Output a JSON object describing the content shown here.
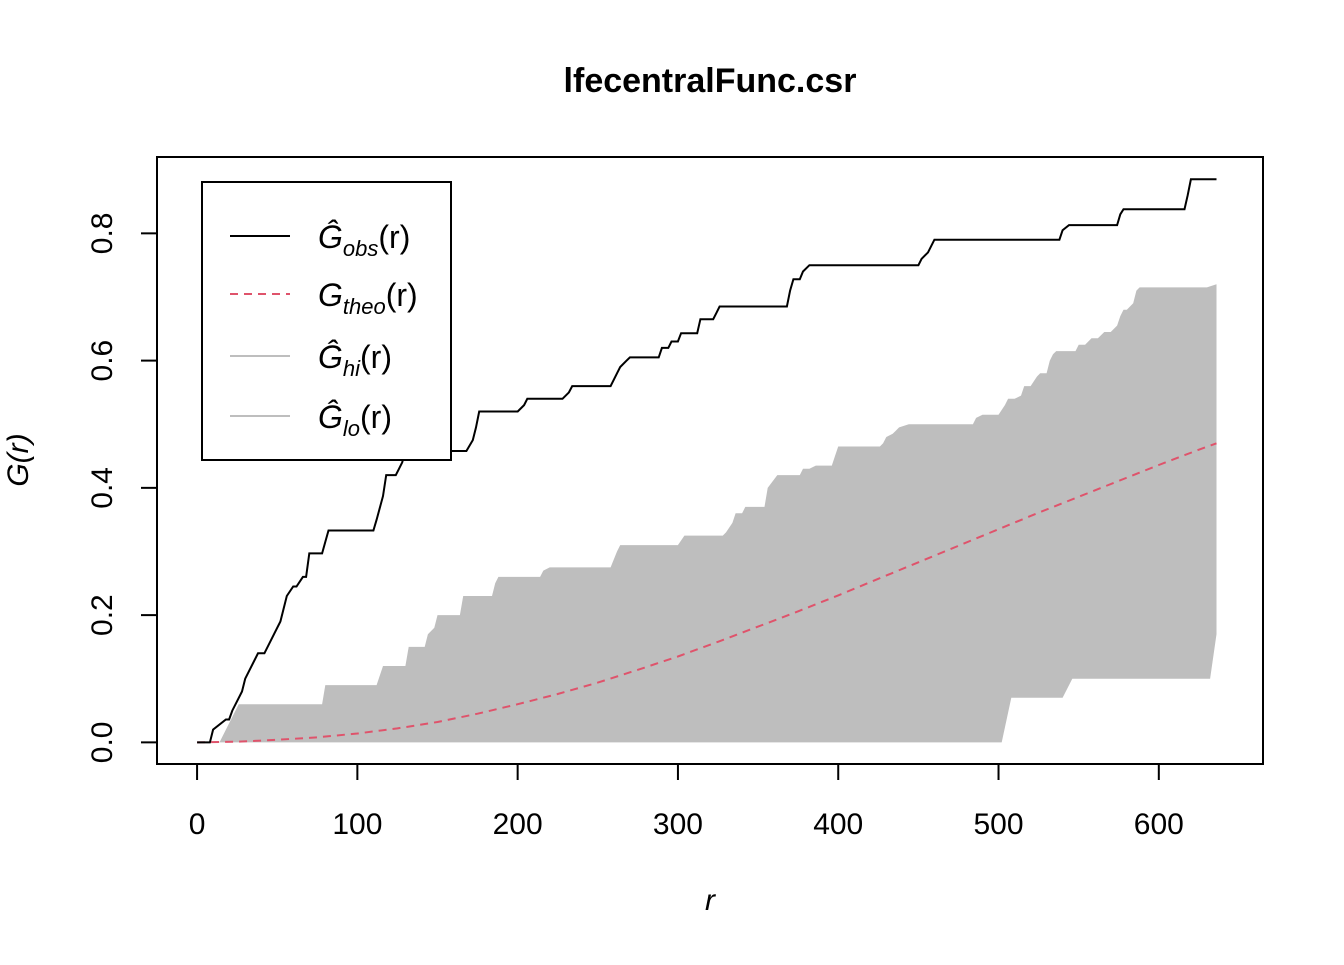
{
  "chart_data": {
    "type": "line",
    "title": "lfecentralFunc.csr",
    "xlabel": "r",
    "ylabel": "G(r)",
    "xlim": [
      -25,
      665
    ],
    "ylim": [
      -0.034,
      0.92
    ],
    "x_ticks": [
      0,
      100,
      200,
      300,
      400,
      500,
      600
    ],
    "y_ticks": [
      0.0,
      0.2,
      0.4,
      0.6,
      0.8
    ],
    "x_tick_labels": [
      "0",
      "100",
      "200",
      "300",
      "400",
      "500",
      "600"
    ],
    "y_tick_labels": [
      "0.0",
      "0.2",
      "0.4",
      "0.6",
      "0.8"
    ],
    "legend_position": "top-left",
    "legend": [
      {
        "symbol": "Ĝ",
        "sub": "obs",
        "arg": "(r)",
        "color": "#000000",
        "dash": "solid",
        "width": 2
      },
      {
        "symbol": "G",
        "sub": "theo",
        "arg": "(r)",
        "color": "#DF536B",
        "dash": "dashed",
        "width": 2
      },
      {
        "symbol": "Ĝ",
        "sub": "hi",
        "arg": "(r)",
        "color": "#BEBEBE",
        "dash": "solid",
        "width": 2
      },
      {
        "symbol": "Ĝ",
        "sub": "lo",
        "arg": "(r)",
        "color": "#BEBEBE",
        "dash": "solid",
        "width": 2
      }
    ],
    "series": [
      {
        "name": "obs",
        "color": "#000000",
        "style": "solid",
        "x": [
          0,
          8,
          10,
          18,
          20,
          22,
          28,
          30,
          38,
          42,
          48,
          52,
          56,
          60,
          62,
          66,
          68,
          70,
          78,
          80,
          82,
          90,
          110,
          112,
          116,
          118,
          124,
          126,
          128,
          130,
          132,
          168,
          172,
          174,
          176,
          200,
          204,
          206,
          228,
          232,
          234,
          258,
          262,
          264,
          268,
          270,
          288,
          290,
          294,
          296,
          300,
          302,
          312,
          314,
          322,
          324,
          326,
          328,
          368,
          370,
          372,
          376,
          378,
          382,
          384,
          450,
          452,
          456,
          458,
          460,
          538,
          540,
          544,
          546,
          574,
          576,
          578,
          580,
          616,
          618,
          620,
          622,
          636
        ],
        "y": [
          0.0,
          0.0,
          0.02,
          0.036,
          0.036,
          0.05,
          0.08,
          0.1,
          0.14,
          0.14,
          0.17,
          0.19,
          0.23,
          0.245,
          0.245,
          0.26,
          0.26,
          0.297,
          0.297,
          0.315,
          0.333,
          0.333,
          0.333,
          0.35,
          0.387,
          0.42,
          0.42,
          0.43,
          0.44,
          0.458,
          0.458,
          0.458,
          0.475,
          0.495,
          0.52,
          0.52,
          0.53,
          0.54,
          0.54,
          0.55,
          0.56,
          0.56,
          0.58,
          0.59,
          0.6,
          0.605,
          0.605,
          0.62,
          0.62,
          0.63,
          0.63,
          0.643,
          0.643,
          0.665,
          0.665,
          0.675,
          0.685,
          0.685,
          0.685,
          0.71,
          0.728,
          0.728,
          0.74,
          0.75,
          0.75,
          0.75,
          0.76,
          0.77,
          0.78,
          0.79,
          0.79,
          0.805,
          0.813,
          0.813,
          0.813,
          0.83,
          0.838,
          0.838,
          0.838,
          0.86,
          0.885,
          0.885,
          0.885
        ]
      },
      {
        "name": "theo",
        "color": "#DF536B",
        "style": "dashed",
        "x": [
          0,
          25,
          50,
          75,
          100,
          125,
          150,
          175,
          200,
          225,
          250,
          275,
          300,
          325,
          350,
          375,
          400,
          425,
          450,
          475,
          500,
          525,
          550,
          575,
          600,
          625,
          636
        ],
        "y": [
          0.0,
          0.001,
          0.004,
          0.008,
          0.014,
          0.022,
          0.032,
          0.045,
          0.06,
          0.076,
          0.094,
          0.114,
          0.135,
          0.158,
          0.182,
          0.206,
          0.231,
          0.257,
          0.283,
          0.309,
          0.335,
          0.361,
          0.386,
          0.411,
          0.436,
          0.46,
          0.47
        ]
      },
      {
        "name": "hi",
        "color": "#BEBEBE",
        "style": "band-upper",
        "x": [
          0,
          14,
          18,
          26,
          78,
          80,
          82,
          112,
          116,
          118,
          130,
          132,
          142,
          144,
          148,
          150,
          154,
          164,
          166,
          170,
          184,
          186,
          188,
          190,
          214,
          216,
          220,
          222,
          258,
          262,
          264,
          300,
          304,
          306,
          328,
          330,
          334,
          336,
          340,
          342,
          348,
          354,
          356,
          362,
          364,
          376,
          378,
          380,
          382,
          386,
          396,
          398,
          400,
          402,
          404,
          406,
          426,
          428,
          430,
          434,
          436,
          438,
          444,
          450,
          458,
          462,
          466,
          472,
          474,
          484,
          486,
          490,
          500,
          504,
          506,
          510,
          514,
          516,
          520,
          524,
          526,
          530,
          532,
          534,
          536,
          548,
          550,
          554,
          556,
          558,
          562,
          566,
          568,
          570,
          574,
          576,
          578,
          580,
          584,
          586,
          588,
          590,
          594,
          598,
          600,
          606,
          612,
          618,
          630,
          636
        ],
        "y": [
          0.0,
          0.0,
          0.02,
          0.06,
          0.06,
          0.09,
          0.09,
          0.09,
          0.12,
          0.12,
          0.12,
          0.15,
          0.15,
          0.17,
          0.18,
          0.2,
          0.2,
          0.2,
          0.23,
          0.23,
          0.23,
          0.25,
          0.26,
          0.26,
          0.26,
          0.27,
          0.275,
          0.275,
          0.275,
          0.3,
          0.31,
          0.31,
          0.325,
          0.325,
          0.325,
          0.33,
          0.345,
          0.36,
          0.36,
          0.37,
          0.37,
          0.37,
          0.4,
          0.42,
          0.42,
          0.42,
          0.43,
          0.43,
          0.43,
          0.435,
          0.435,
          0.45,
          0.465,
          0.465,
          0.465,
          0.465,
          0.465,
          0.47,
          0.48,
          0.485,
          0.49,
          0.495,
          0.5,
          0.5,
          0.5,
          0.5,
          0.5,
          0.5,
          0.5,
          0.5,
          0.51,
          0.515,
          0.515,
          0.53,
          0.54,
          0.54,
          0.545,
          0.56,
          0.56,
          0.575,
          0.58,
          0.58,
          0.6,
          0.61,
          0.615,
          0.615,
          0.625,
          0.625,
          0.63,
          0.635,
          0.635,
          0.645,
          0.645,
          0.645,
          0.655,
          0.67,
          0.68,
          0.68,
          0.69,
          0.71,
          0.715,
          0.715,
          0.715,
          0.715,
          0.715,
          0.715,
          0.715,
          0.715,
          0.715,
          0.72
        ]
      },
      {
        "name": "lo",
        "color": "#BEBEBE",
        "style": "band-lower",
        "x": [
          0,
          500,
          502,
          508,
          512,
          540,
          546,
          632,
          636
        ],
        "y": [
          0.0,
          0.0,
          0.0,
          0.07,
          0.07,
          0.07,
          0.1,
          0.1,
          0.17
        ]
      }
    ]
  }
}
